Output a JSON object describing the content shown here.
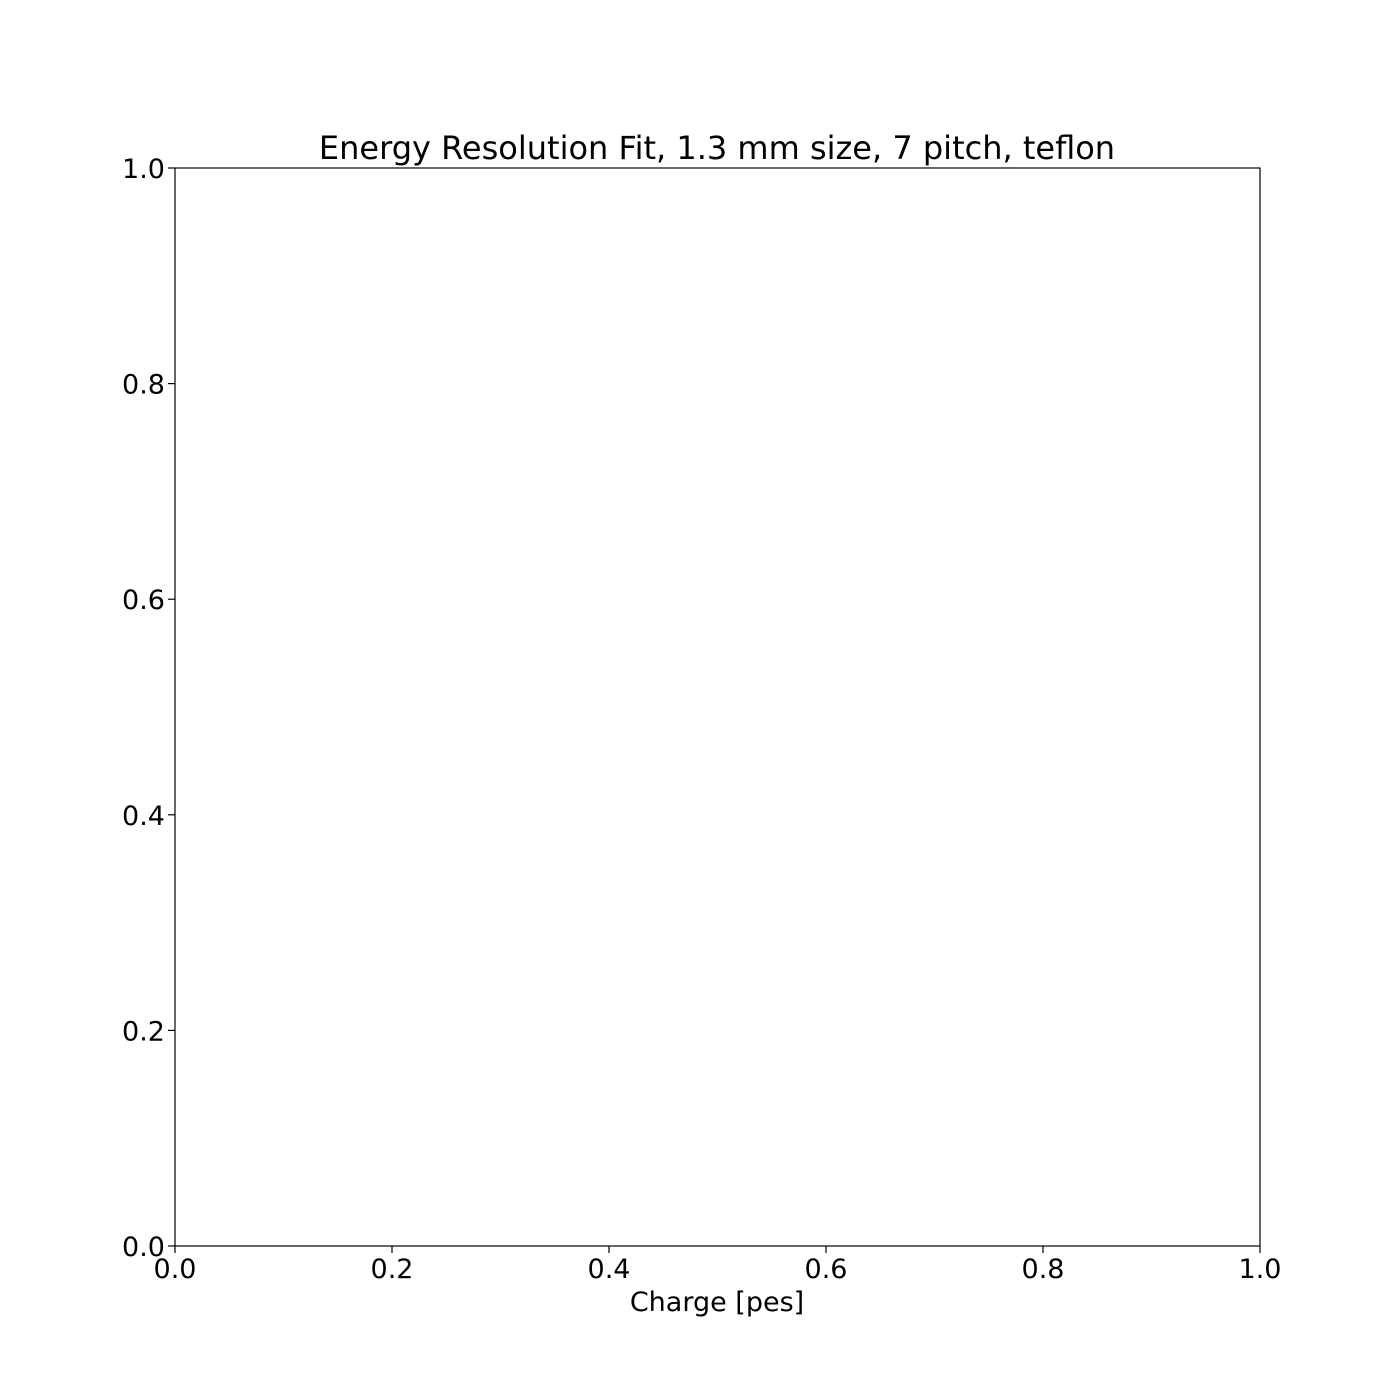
{
  "chart_data": {
    "type": "line",
    "title": "Energy Resolution Fit, 1.3 mm size, 7 pitch, teflon",
    "xlabel": "Charge [pes]",
    "ylabel": "",
    "xlim": [
      0.0,
      1.0
    ],
    "ylim": [
      0.0,
      1.0
    ],
    "xticks": [
      "0.0",
      "0.2",
      "0.4",
      "0.6",
      "0.8",
      "1.0"
    ],
    "yticks": [
      "0.0",
      "0.2",
      "0.4",
      "0.6",
      "0.8",
      "1.0"
    ],
    "grid": false,
    "series": []
  }
}
